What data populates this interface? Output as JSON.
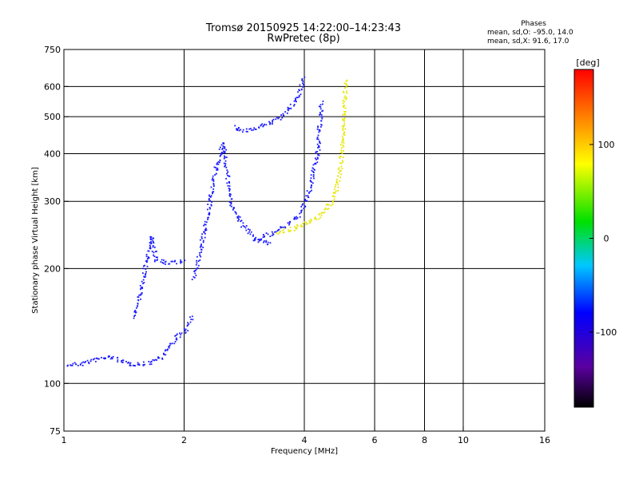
{
  "chart_data": {
    "type": "scatter",
    "title": "Tromsø 20150925 14:22:00–14:23:43",
    "subtitle": "RwPretec (8p)",
    "xlabel": "Frequency [MHz]",
    "ylabel": "Stationary phase Virtual Height [km]",
    "x_scale": "log",
    "y_scale": "log",
    "xlim": [
      1,
      16
    ],
    "ylim": [
      75,
      750
    ],
    "x_ticks": [
      1,
      2,
      4,
      6,
      8,
      10,
      16
    ],
    "x_tick_labels": [
      "1",
      "2",
      "4",
      "6",
      "8",
      "10",
      "16"
    ],
    "y_ticks": [
      75,
      100,
      200,
      300,
      400,
      500,
      600,
      750
    ],
    "y_tick_labels": [
      "75",
      "100",
      "200",
      "300",
      "400",
      "500",
      "600",
      "750"
    ],
    "x_gridlines": [
      2,
      4,
      6,
      8,
      10
    ],
    "y_gridlines": [
      100,
      200,
      300,
      400,
      500,
      600
    ],
    "grid": true,
    "stats": {
      "heading": "Phases",
      "line_o": "mean, sd,O: –95.0, 14.0",
      "line_x": "mean, sd,X:  91.6, 17.0"
    },
    "colorbar": {
      "label": "[deg]",
      "min": -180,
      "max": 180,
      "ticks": [
        100,
        0,
        -100
      ],
      "tick_labels": [
        "100",
        "0",
        "–100"
      ]
    },
    "series": [
      {
        "mode": "O",
        "phase_deg": -100,
        "traces": [
          {
            "x": [
              1.0,
              1.1,
              1.2,
              1.3,
              1.45,
              1.6,
              1.75,
              1.9,
              2.0,
              2.1
            ],
            "y": [
              112,
              113,
              116,
              118,
              113,
              113,
              118,
              132,
              137,
              150
            ]
          },
          {
            "x": [
              2.1,
              2.2,
              2.3,
              2.4,
              2.5,
              2.6,
              2.8,
              3.0,
              3.3
            ],
            "y": [
              190,
              230,
              290,
              370,
              430,
              300,
              260,
              240,
              232
            ]
          },
          {
            "x": [
              2.65,
              2.8,
              3.0,
              3.2,
              3.5,
              3.8,
              4.0
            ],
            "y": [
              470,
              460,
              470,
              480,
              500,
              550,
              640
            ]
          },
          {
            "x": [
              3.0,
              3.3,
              3.6,
              3.9,
              4.1,
              4.3,
              4.4
            ],
            "y": [
              238,
              248,
              260,
              280,
              320,
              400,
              550
            ]
          },
          {
            "x": [
              1.5,
              1.55,
              1.6,
              1.65,
              1.7,
              1.8,
              2.0
            ],
            "y": [
              150,
              175,
              205,
              245,
              210,
              208,
              210
            ]
          }
        ]
      },
      {
        "mode": "X",
        "phase_deg": 92,
        "traces": [
          {
            "x": [
              3.4,
              3.7,
              4.0,
              4.3,
              4.5,
              4.7,
              4.85,
              4.95,
              5.0,
              5.05
            ],
            "y": [
              250,
              255,
              262,
              272,
              285,
              305,
              340,
              400,
              480,
              630
            ]
          }
        ]
      }
    ]
  }
}
